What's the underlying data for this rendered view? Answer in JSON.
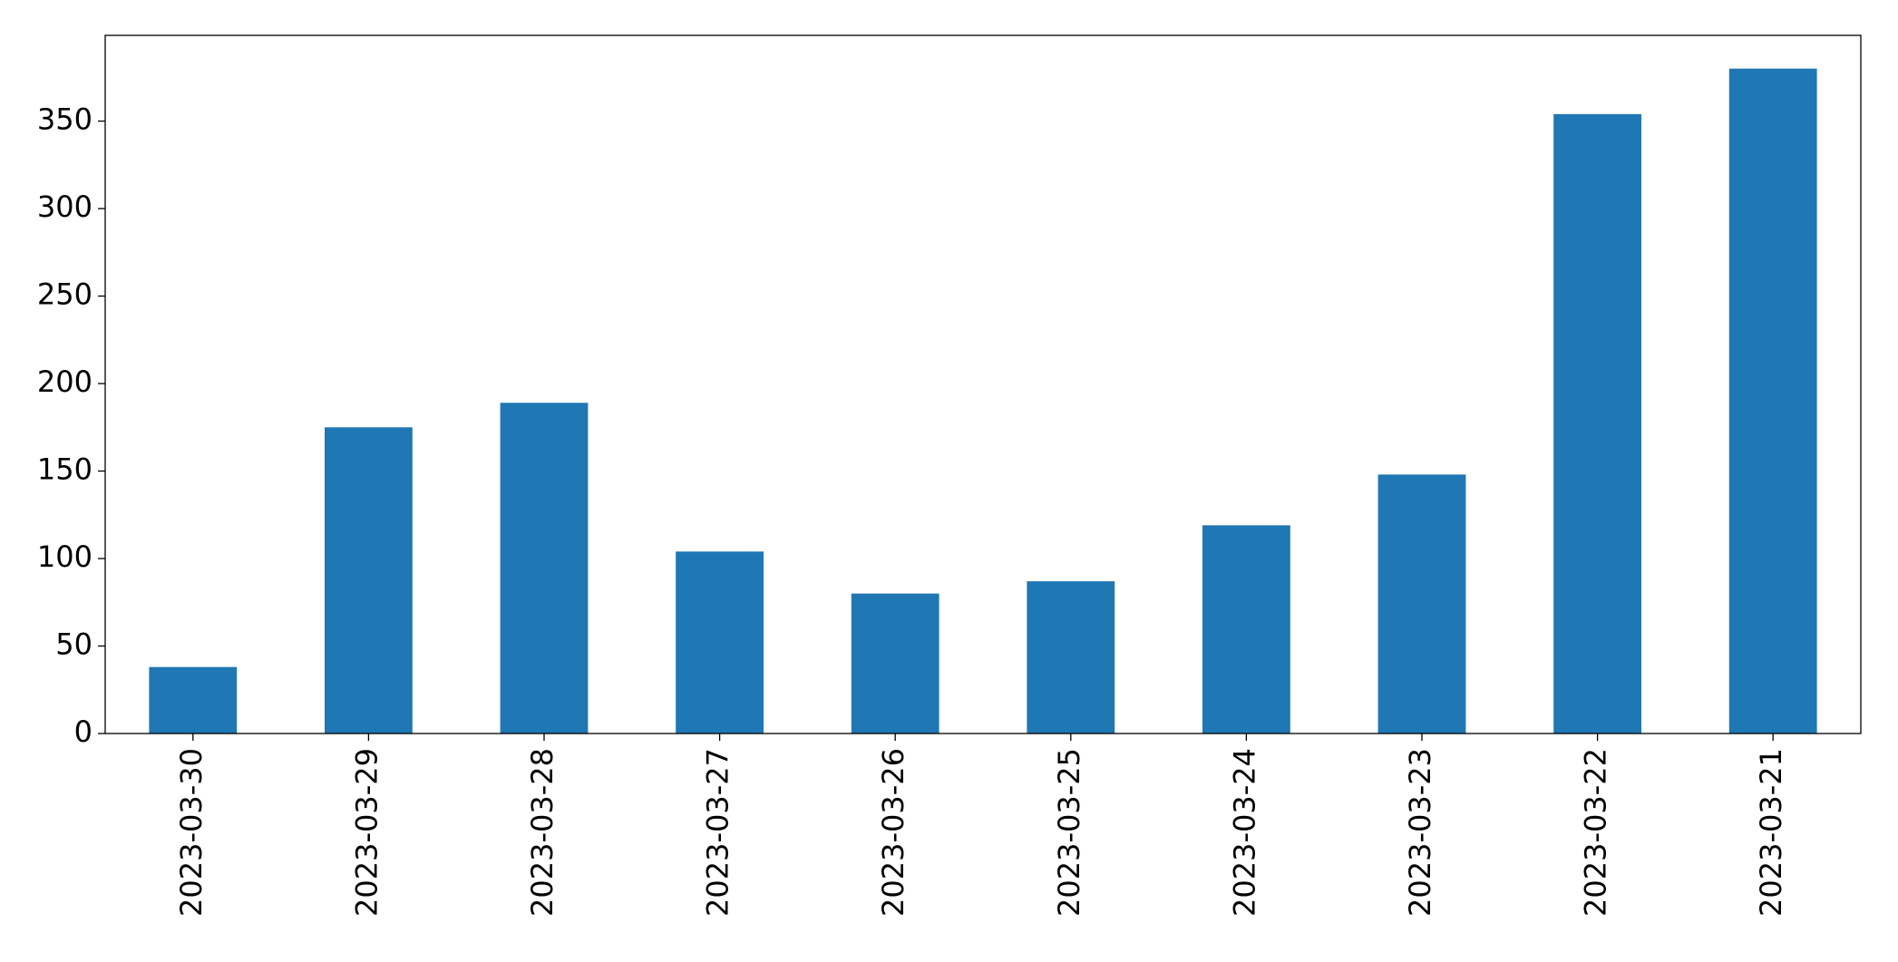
{
  "chart_data": {
    "type": "bar",
    "categories": [
      "2023-03-30",
      "2023-03-29",
      "2023-03-28",
      "2023-03-27",
      "2023-03-26",
      "2023-03-25",
      "2023-03-24",
      "2023-03-23",
      "2023-03-22",
      "2023-03-21"
    ],
    "values": [
      38,
      175,
      189,
      104,
      80,
      87,
      119,
      148,
      354,
      380
    ],
    "color": "#1f77b4",
    "ylim": [
      0,
      399
    ],
    "yticks": [
      0,
      50,
      100,
      150,
      200,
      250,
      300,
      350
    ],
    "grid": false
  }
}
